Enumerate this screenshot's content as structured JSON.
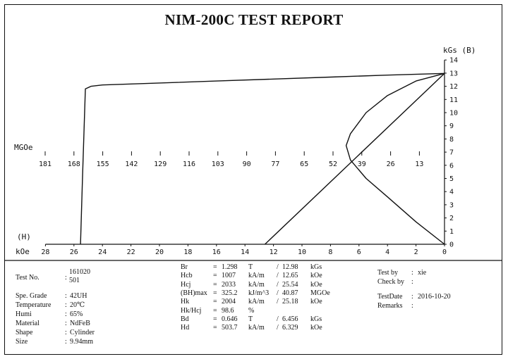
{
  "report": {
    "title": "NIM-200C TEST REPORT"
  },
  "chart_data": {
    "type": "line",
    "title": "NIM-200C TEST REPORT",
    "x_axis": {
      "label": "kOe",
      "marker": "(H)",
      "ticks": [
        28,
        26,
        24,
        22,
        20,
        18,
        16,
        14,
        12,
        10,
        8,
        6,
        4,
        2,
        0
      ],
      "range": [
        28,
        0
      ]
    },
    "y_axis_right": {
      "label": "kGs (B)",
      "ticks": [
        0,
        1,
        2,
        3,
        4,
        5,
        6,
        7,
        8,
        9,
        10,
        11,
        12,
        13,
        14
      ],
      "range": [
        0,
        14
      ]
    },
    "energy_axis": {
      "label": "MGOe",
      "ticks": [
        181,
        168,
        155,
        142,
        129,
        116,
        103,
        90,
        77,
        65,
        52,
        39,
        26,
        13
      ]
    },
    "series": [
      {
        "kind": "intrinsic-demag-curve",
        "x": [
          0,
          4,
          8,
          12,
          16,
          20,
          24,
          24.8,
          25.2,
          25.4,
          25.54
        ],
        "y": [
          12.98,
          12.85,
          12.7,
          12.55,
          12.4,
          12.25,
          12.1,
          12.0,
          11.8,
          5.0,
          0
        ]
      },
      {
        "kind": "load-line",
        "x": [
          0,
          12.6
        ],
        "y": [
          12.98,
          0
        ]
      },
      {
        "kind": "energy-product-curve",
        "x": [
          0,
          2,
          4,
          5.5,
          6.6,
          6.9,
          6.6,
          5.5,
          4,
          2,
          0
        ],
        "y": [
          0,
          1.7,
          3.6,
          5.0,
          6.4,
          7.5,
          8.4,
          10.0,
          11.3,
          12.4,
          12.98
        ]
      }
    ]
  },
  "results": {
    "test_no": {
      "label": "Test No.",
      "sep": ":",
      "value_line1": "161020",
      "value_line2": "501"
    },
    "grade": {
      "label": "Spe. Grade",
      "sep": ":",
      "value": "42UH"
    },
    "temperature": {
      "label": "Temperature",
      "sep": ":",
      "value": "20℃"
    },
    "humi": {
      "label": "Humi",
      "sep": ":",
      "value": "65%"
    },
    "material": {
      "label": "Material",
      "sep": ":",
      "value": "NdFeB"
    },
    "shape": {
      "label": "Shape",
      "sep": ":",
      "value": "Cylinder"
    },
    "size": {
      "label": "Size",
      "sep": ":",
      "value": "9.94mm"
    },
    "params": [
      {
        "name": "Br",
        "eq": "=",
        "v1": "1.298",
        "u1": "T",
        "slash": "/",
        "v2": "12.98",
        "u2": "kGs"
      },
      {
        "name": "Hcb",
        "eq": "=",
        "v1": "1007",
        "u1": "kA/m",
        "slash": "/",
        "v2": "12.65",
        "u2": "kOe"
      },
      {
        "name": "Hcj",
        "eq": "=",
        "v1": "2033",
        "u1": "kA/m",
        "slash": "/",
        "v2": "25.54",
        "u2": "kOe"
      },
      {
        "name": "(BH)max",
        "eq": "=",
        "v1": "325.2",
        "u1": "kJ/m^3",
        "slash": "/",
        "v2": "40.87",
        "u2": "MGOe"
      },
      {
        "name": "Hk",
        "eq": "=",
        "v1": "2004",
        "u1": "kA/m",
        "slash": "/",
        "v2": "25.18",
        "u2": "kOe"
      },
      {
        "name": "Hk/Hcj",
        "eq": "=",
        "v1": "98.6",
        "u1": "%",
        "slash": "",
        "v2": "",
        "u2": ""
      },
      {
        "name": "Bd",
        "eq": "=",
        "v1": "0.646",
        "u1": "T",
        "slash": "/",
        "v2": "6.456",
        "u2": "kGs"
      },
      {
        "name": "Hd",
        "eq": "=",
        "v1": "503.7",
        "u1": "kA/m",
        "slash": "/",
        "v2": "6.329",
        "u2": "kOe"
      }
    ],
    "test_by": {
      "label": "Test by",
      "sep": ":",
      "value": "xie"
    },
    "check_by": {
      "label": "Check by",
      "sep": ":",
      "value": ""
    },
    "test_date": {
      "label": "TestDate",
      "sep": ":",
      "value": "2016-10-20"
    },
    "remarks": {
      "label": "Remarks",
      "sep": ":",
      "value": ""
    }
  }
}
